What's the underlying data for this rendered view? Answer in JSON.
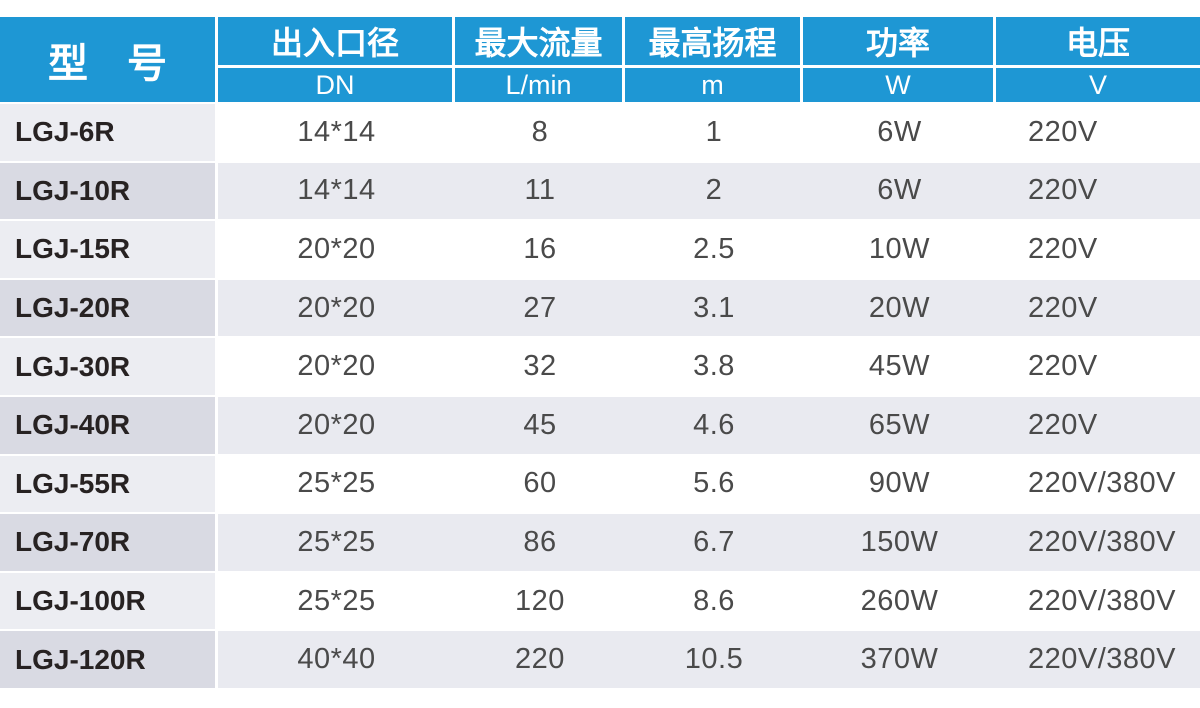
{
  "colors": {
    "accent": "#1e97d4",
    "model-odd": "#ecedf2",
    "model-even": "#d9dae3",
    "row-odd": "#ffffff",
    "row-even": "#e9eaf0",
    "model-text": "#272222",
    "value-text": "#4a4a4a",
    "header-text": "#ffffff"
  },
  "table": {
    "model_header": "型 号",
    "columns": [
      {
        "label": "出入口径",
        "unit": "DN"
      },
      {
        "label": "最大流量",
        "unit": "L/min"
      },
      {
        "label": "最高扬程",
        "unit": "m"
      },
      {
        "label": "功率",
        "unit": "W"
      },
      {
        "label": "电压",
        "unit": "V"
      }
    ],
    "rows": [
      {
        "model": "LGJ-6R",
        "values": [
          "14*14",
          "8",
          "1",
          "6W",
          "220V"
        ]
      },
      {
        "model": "LGJ-10R",
        "values": [
          "14*14",
          "11",
          "2",
          "6W",
          "220V"
        ]
      },
      {
        "model": "LGJ-15R",
        "values": [
          "20*20",
          "16",
          "2.5",
          "10W",
          "220V"
        ]
      },
      {
        "model": "LGJ-20R",
        "values": [
          "20*20",
          "27",
          "3.1",
          "20W",
          "220V"
        ]
      },
      {
        "model": "LGJ-30R",
        "values": [
          "20*20",
          "32",
          "3.8",
          "45W",
          "220V"
        ]
      },
      {
        "model": "LGJ-40R",
        "values": [
          "20*20",
          "45",
          "4.6",
          "65W",
          "220V"
        ]
      },
      {
        "model": "LGJ-55R",
        "values": [
          "25*25",
          "60",
          "5.6",
          "90W",
          "220V/380V"
        ]
      },
      {
        "model": "LGJ-70R",
        "values": [
          "25*25",
          "86",
          "6.7",
          "150W",
          "220V/380V"
        ]
      },
      {
        "model": "LGJ-100R",
        "values": [
          "25*25",
          "120",
          "8.6",
          "260W",
          "220V/380V"
        ]
      },
      {
        "model": "LGJ-120R",
        "values": [
          "40*40",
          "220",
          "10.5",
          "370W",
          "220V/380V"
        ]
      }
    ]
  }
}
